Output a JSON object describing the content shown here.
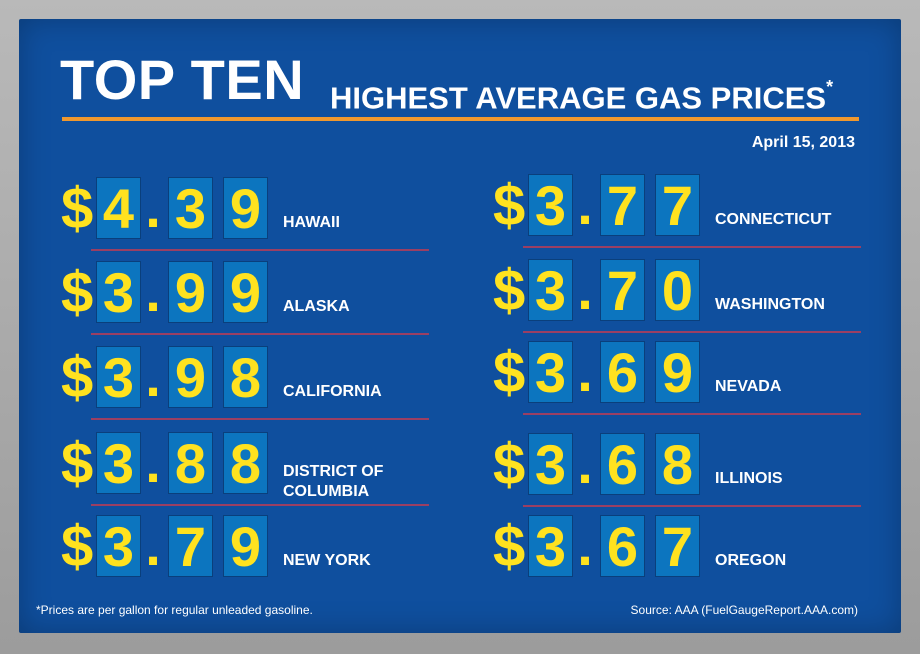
{
  "title": {
    "big": "TOP TEN",
    "sub": "HIGHEST AVERAGE GAS PRICES",
    "asterisk": "*"
  },
  "date": "April 15, 2013",
  "currency_symbol": "$",
  "decimal_point": ".",
  "left_column": [
    {
      "d1": "4",
      "d2": "3",
      "d3": "9",
      "state": "HAWAII"
    },
    {
      "d1": "3",
      "d2": "9",
      "d3": "9",
      "state": "ALASKA"
    },
    {
      "d1": "3",
      "d2": "9",
      "d3": "8",
      "state": "CALIFORNIA"
    },
    {
      "d1": "3",
      "d2": "8",
      "d3": "8",
      "state_line1": "DISTRICT OF",
      "state_line2": "COLUMBIA"
    },
    {
      "d1": "3",
      "d2": "7",
      "d3": "9",
      "state": "NEW YORK"
    }
  ],
  "right_column": [
    {
      "d1": "3",
      "d2": "7",
      "d3": "7",
      "state": "CONNECTICUT"
    },
    {
      "d1": "3",
      "d2": "7",
      "d3": "0",
      "state": "WASHINGTON"
    },
    {
      "d1": "3",
      "d2": "6",
      "d3": "9",
      "state": "NEVADA"
    },
    {
      "d1": "3",
      "d2": "6",
      "d3": "8",
      "state": "ILLINOIS"
    },
    {
      "d1": "3",
      "d2": "6",
      "d3": "7",
      "state": "OREGON"
    }
  ],
  "footnote": "*Prices are per gallon for regular unleaded gasoline.",
  "source": "Source: AAA (FuelGaugeReport.AAA.com)",
  "colors": {
    "board": "#0f4f9e",
    "digit_tile": "#0c75bf",
    "digit_text": "#ffe21f",
    "accent_rule": "#f0982e",
    "row_rule": "#9b3f63"
  }
}
